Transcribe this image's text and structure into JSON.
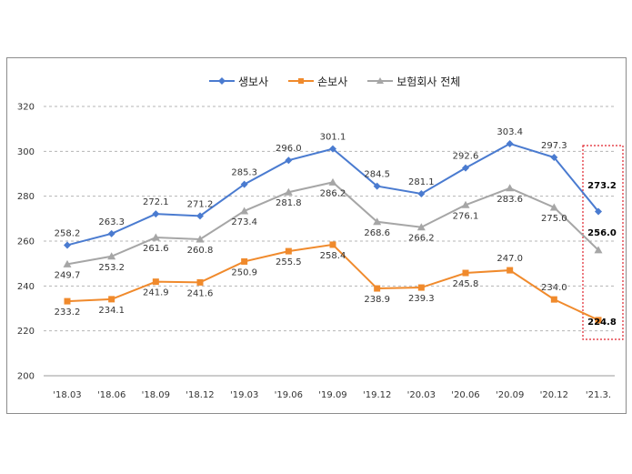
{
  "chart_data": {
    "type": "line",
    "title": "",
    "xlabel": "",
    "ylabel": "",
    "categories": [
      "'18.03",
      "'18.06",
      "'18.09",
      "'18.12",
      "'19.03",
      "'19.06",
      "'19.09",
      "'19.12",
      "'20.03",
      "'20.06",
      "'20.09",
      "'20.12",
      "'21.3."
    ],
    "ylim": [
      200,
      320
    ],
    "yticks": [
      200,
      220,
      240,
      260,
      280,
      300,
      320
    ],
    "grid": "horizontal-dashed",
    "legend_position": "top-center",
    "series": [
      {
        "name": "생보사",
        "color": "#4a7bd0",
        "marker": "diamond",
        "values": [
          258.2,
          263.3,
          272.1,
          271.2,
          285.3,
          296.0,
          301.1,
          284.5,
          281.1,
          292.6,
          303.4,
          297.3,
          273.2
        ],
        "labels": [
          "258.2",
          "263.3",
          "272.1",
          "271.2",
          "285.3",
          "296.0",
          "301.1",
          "284.5",
          "281.1",
          "292.6",
          "303.4",
          "297.3",
          "273.2"
        ]
      },
      {
        "name": "손보사",
        "color": "#f08a2c",
        "marker": "square",
        "values": [
          233.2,
          234.1,
          241.9,
          241.6,
          250.9,
          255.5,
          258.4,
          238.9,
          239.3,
          245.8,
          247.0,
          234.0,
          224.8
        ],
        "labels": [
          "233.2",
          "234.1",
          "241.9",
          "241.6",
          "250.9",
          "255.5",
          "258.4",
          "238.9",
          "239.3",
          "245.8",
          "247.0",
          "234.0",
          "224.8"
        ]
      },
      {
        "name": "보험회사 전체",
        "color": "#a6a6a6",
        "marker": "triangle",
        "values": [
          249.7,
          253.2,
          261.6,
          260.8,
          273.4,
          281.8,
          286.2,
          268.6,
          266.2,
          276.1,
          283.6,
          275.0,
          256.0
        ],
        "labels": [
          "249.7",
          "253.2",
          "261.6",
          "260.8",
          "273.4",
          "281.8",
          "286.2",
          "268.6",
          "266.2",
          "276.1",
          "283.6",
          "275.0",
          "256.0"
        ]
      }
    ],
    "highlight": {
      "category": "'21.3.",
      "style": "red-dashed-box"
    }
  }
}
